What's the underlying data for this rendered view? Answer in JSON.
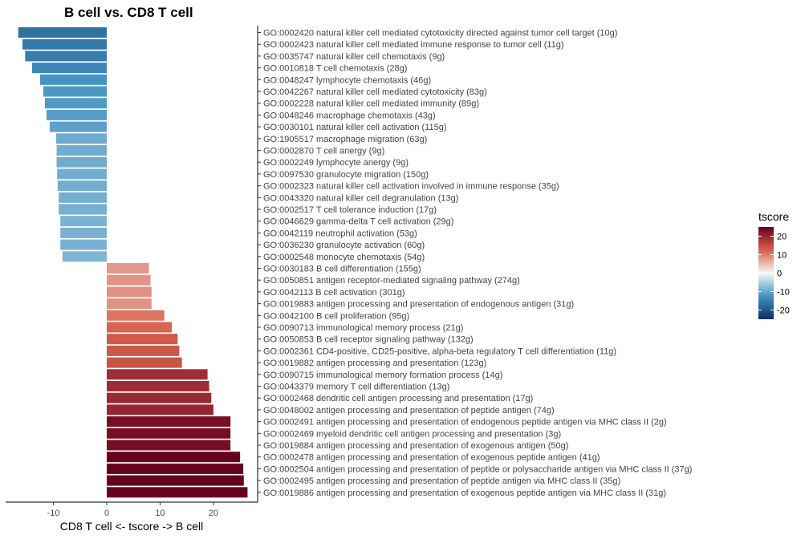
{
  "chart_data": {
    "type": "bar",
    "orientation": "horizontal",
    "title": "B cell vs. CD8 T cell",
    "xlabel": "CD8 T cell <- tscore -> B cell",
    "xlim": [
      -18.5,
      28
    ],
    "xticks": [
      -10,
      0,
      10,
      20
    ],
    "grid": false,
    "legend": {
      "title": "tscore",
      "placement": "right",
      "min": -25,
      "max": 25,
      "ticks": [
        20,
        10,
        0,
        -10,
        -20
      ],
      "colors": {
        "low": "#053061",
        "mid_low": "#4393c3",
        "mid": "#f7f7f7",
        "mid_high": "#d6604d",
        "high": "#67001f"
      }
    },
    "categories": [
      "GO:0002420 natural killer cell mediated cytotoxicity directed against tumor cell target (10g)",
      "GO:0002423 natural killer cell mediated immune response to tumor cell (11g)",
      "GO:0035747 natural killer cell chemotaxis (9g)",
      "GO:0010818 T cell chemotaxis (28g)",
      "GO:0048247 lymphocyte chemotaxis (46g)",
      "GO:0042267 natural killer cell mediated cytotoxicity (83g)",
      "GO:0002228 natural killer cell mediated immunity (89g)",
      "GO:0048246 macrophage chemotaxis (43g)",
      "GO:0030101 natural killer cell activation (115g)",
      "GO:1905517 macrophage migration (63g)",
      "GO:0002870 T cell anergy (9g)",
      "GO:0002249 lymphocyte anergy (9g)",
      "GO:0097530 granulocyte migration (150g)",
      "GO:0002323 natural killer cell activation involved in immune response (35g)",
      "GO:0043320 natural killer cell degranulation (13g)",
      "GO:0002517 T cell tolerance induction (17g)",
      "GO:0046629 gamma-delta T cell activation (29g)",
      "GO:0042119 neutrophil activation (53g)",
      "GO:0036230 granulocyte activation (60g)",
      "GO:0002548 monocyte chemotaxis (54g)",
      "GO:0030183 B cell differentiation (155g)",
      "GO:0050851 antigen receptor-mediated signaling pathway (274g)",
      "GO:0042113 B cell activation (301g)",
      "GO:0019883 antigen processing and presentation of endogenous antigen (31g)",
      "GO:0042100 B cell proliferation (95g)",
      "GO:0090713 immunological memory process (21g)",
      "GO:0050853 B cell receptor signaling pathway (132g)",
      "GO:0002361 CD4-positive, CD25-positive, alpha-beta regulatory T cell differentiation (11g)",
      "GO:0019882 antigen processing and presentation (123g)",
      "GO:0090715 immunological memory formation process (14g)",
      "GO:0043379 memory T cell differentiation (13g)",
      "GO:0002468 dendritic cell antigen processing and presentation (17g)",
      "GO:0048002 antigen processing and presentation of peptide antigen (74g)",
      "GO:0002491 antigen processing and presentation of endogenous peptide antigen via MHC class II (2g)",
      "GO:0002469 myeloid dendritic cell antigen processing and presentation (3g)",
      "GO:0019884 antigen processing and presentation of exogenous antigen (50g)",
      "GO:0002478 antigen processing and presentation of exogenous peptide antigen (41g)",
      "GO:0002504 antigen processing and presentation of peptide or polysaccharide antigen via MHC class II (37g)",
      "GO:0002495 antigen processing and presentation of peptide antigen via MHC class II (35g)",
      "GO:0019886 antigen processing and presentation of exogenous peptide antigen via MHC class II (31g)"
    ],
    "values": [
      -16.6,
      -15.8,
      -15.3,
      -14.0,
      -12.5,
      -11.9,
      -11.6,
      -11.3,
      -10.7,
      -9.5,
      -9.4,
      -9.4,
      -9.3,
      -9.2,
      -9.0,
      -9.0,
      -8.7,
      -8.7,
      -8.7,
      -8.3,
      7.9,
      8.2,
      8.4,
      8.4,
      10.8,
      12.2,
      13.3,
      13.6,
      14.1,
      18.9,
      19.2,
      19.6,
      20.0,
      23.2,
      23.2,
      23.2,
      25.0,
      25.6,
      25.7,
      26.4
    ]
  }
}
